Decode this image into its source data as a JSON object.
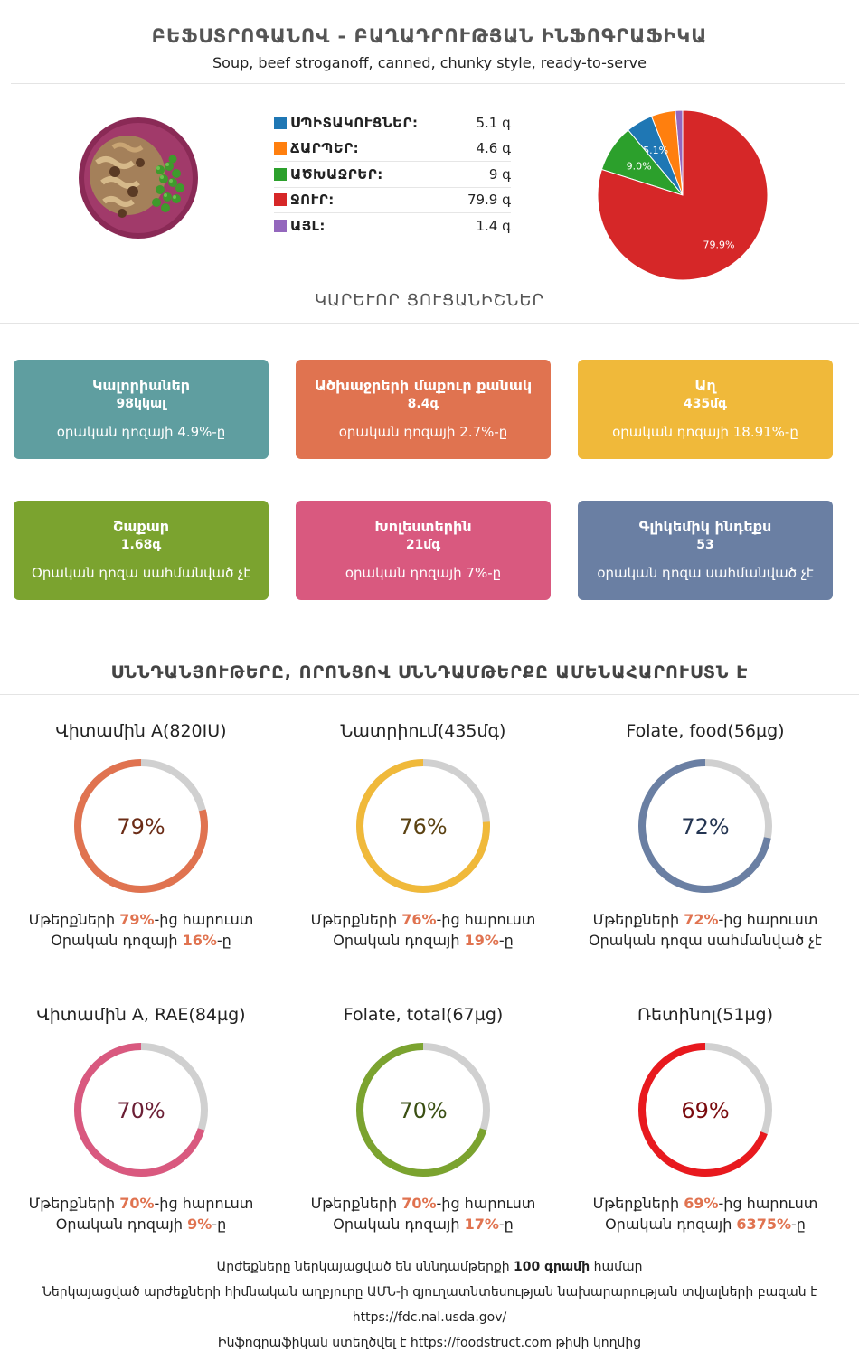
{
  "header": {
    "title": "ԲԵՖՍՏՐՈԳԱՆՈՎ - ԲԱՂԱԴՐՈՒԹՅԱՆ ԻՆՖՈԳՐԱՖԻԿԱ",
    "subtitle": "Soup, beef stroganoff, canned, chunky style, ready-to-serve"
  },
  "macros": [
    {
      "name": "ՍՊԻՏԱԿՈՒՑՆԵՐ:",
      "value": "5.1 գ",
      "color": "#1f77b4"
    },
    {
      "name": "ՃԱՐՊԵՐ:",
      "value": "4.6 գ",
      "color": "#ff7f0e"
    },
    {
      "name": "ԱԾԽԱՋՐԵՐ:",
      "value": "9 գ",
      "color": "#2ca02c"
    },
    {
      "name": "ՋՈՒՐ:",
      "value": "79.9 գ",
      "color": "#d62728"
    },
    {
      "name": "ԱՅԼ:",
      "value": "1.4 գ",
      "color": "#9467bd"
    }
  ],
  "chart_data": {
    "type": "pie",
    "categories": [
      "ՍՊԻՏԱԿՈՒՑՆԵՐ",
      "ՃԱՐՊԵՐ",
      "ԱԾԽԱՋՐԵՐ",
      "ՋՈՒՐ",
      "ԱՅԼ"
    ],
    "values": [
      5.1,
      4.6,
      9,
      79.9,
      1.4
    ],
    "colors": [
      "#1f77b4",
      "#ff7f0e",
      "#2ca02c",
      "#d62728",
      "#9467bd"
    ],
    "slice_labels": [
      "5.1%",
      "",
      "9.0%",
      "79.9%",
      ""
    ]
  },
  "key_section": {
    "title": "ԿԱՐԵՒՈՐ ՑՈՒՑԱՆԻՇՆԵՐ"
  },
  "cards": [
    {
      "name": "Կալորիաներ",
      "value": "98կկալ",
      "pct": "օրական դոզայի 4.9%-ը",
      "color": "#5f9ea0"
    },
    {
      "name": "Ածխաջրերի մաքուր քանակ",
      "value": "8.4գ",
      "pct": "օրական դոզայի 2.7%-ը",
      "color": "#e07350"
    },
    {
      "name": "Աղ",
      "value": "435մգ",
      "pct": "օրական դոզայի 18.91%-ը",
      "color": "#f0b93a"
    },
    {
      "name": "Շաքար",
      "value": "1.68գ",
      "pct": "Օրական դոզա սահմանված չէ",
      "color": "#7ba32f"
    },
    {
      "name": "Խոլեստերին",
      "value": "21մգ",
      "pct": "օրական դոզայի 7%-ը",
      "color": "#d9597f"
    },
    {
      "name": "Գլիկեմիկ ինդեքս",
      "value": "53",
      "pct": "օրական դոզա սահմանված չէ",
      "color": "#6a7fa3"
    }
  ],
  "rich_section": {
    "title": "ՍՆՆԴԱՆՅՈՒԹԵՐԸ, ՈՐՈՆՑՈՎ ՍՆՆԴԱՄԹԵՐՔԸ ԱՄԵՆԱՀԱՐՈՒՍՏՆ Է"
  },
  "nutrients": [
    {
      "name": "Վիտամին A(820IU)",
      "percent": 79,
      "pct_text": "79%",
      "color": "#e07350",
      "text_color": "#6b2c16",
      "line1_pre": "Մթերքների ",
      "line1_hl": "79%",
      "line1_post": "-ից հարուստ",
      "line2_pre": "Օրական դոզայի ",
      "line2_hl": "16%",
      "line2_post": "-ը"
    },
    {
      "name": "Նատրիում(435մգ)",
      "percent": 76,
      "pct_text": "76%",
      "color": "#f0b93a",
      "text_color": "#5b4212",
      "line1_pre": "Մթերքների ",
      "line1_hl": "76%",
      "line1_post": "-ից հարուստ",
      "line2_pre": "Օրական դոզայի ",
      "line2_hl": "19%",
      "line2_post": "-ը"
    },
    {
      "name": "Folate, food(56µg)",
      "percent": 72,
      "pct_text": "72%",
      "color": "#6a7fa3",
      "text_color": "#243552",
      "line1_pre": "Մթերքների ",
      "line1_hl": "72%",
      "line1_post": "-ից հարուստ",
      "line2_pre": "Օրական դոզա սահմանված չէ",
      "line2_hl": "",
      "line2_post": ""
    },
    {
      "name": "Վիտամին A, RAE(84µg)",
      "percent": 70,
      "pct_text": "70%",
      "color": "#d9597f",
      "text_color": "#6b1f35",
      "line1_pre": "Մթերքների ",
      "line1_hl": "70%",
      "line1_post": "-ից հարուստ",
      "line2_pre": "Օրական դոզայի ",
      "line2_hl": "9%",
      "line2_post": "-ը"
    },
    {
      "name": "Folate, total(67µg)",
      "percent": 70,
      "pct_text": "70%",
      "color": "#7ba32f",
      "text_color": "#3a4f13",
      "line1_pre": "Մթերքների ",
      "line1_hl": "70%",
      "line1_post": "-ից հարուստ",
      "line2_pre": "Օրական դոզայի ",
      "line2_hl": "17%",
      "line2_post": "-ը"
    },
    {
      "name": "Ռետինոլ(51µg)",
      "percent": 69,
      "pct_text": "69%",
      "color": "#e8191e",
      "text_color": "#7a0b0e",
      "line1_pre": "Մթերքների ",
      "line1_hl": "69%",
      "line1_post": "-ից հարուստ",
      "line2_pre": "Օրական դոզայի ",
      "line2_hl": "6375%",
      "line2_post": "-ը"
    }
  ],
  "footer": {
    "line1_pre": "Արժեքները ներկայացված են սննդամթերքի ",
    "line1_bold": "100 գրամի",
    "line1_post": " համար",
    "line2": "Ներկայացված արժեքների հիմնական աղբյուրը ԱՄՆ-ի գյուղատնտեսության նախարարության տվյալների բազան է",
    "line3": "https://fdc.nal.usda.gov/",
    "line4_pre": "Ինֆոգրաֆիկան ստեղծվել է ",
    "line4_link": "https://foodstruct.com",
    "line4_post": " թիմի կողմից"
  }
}
